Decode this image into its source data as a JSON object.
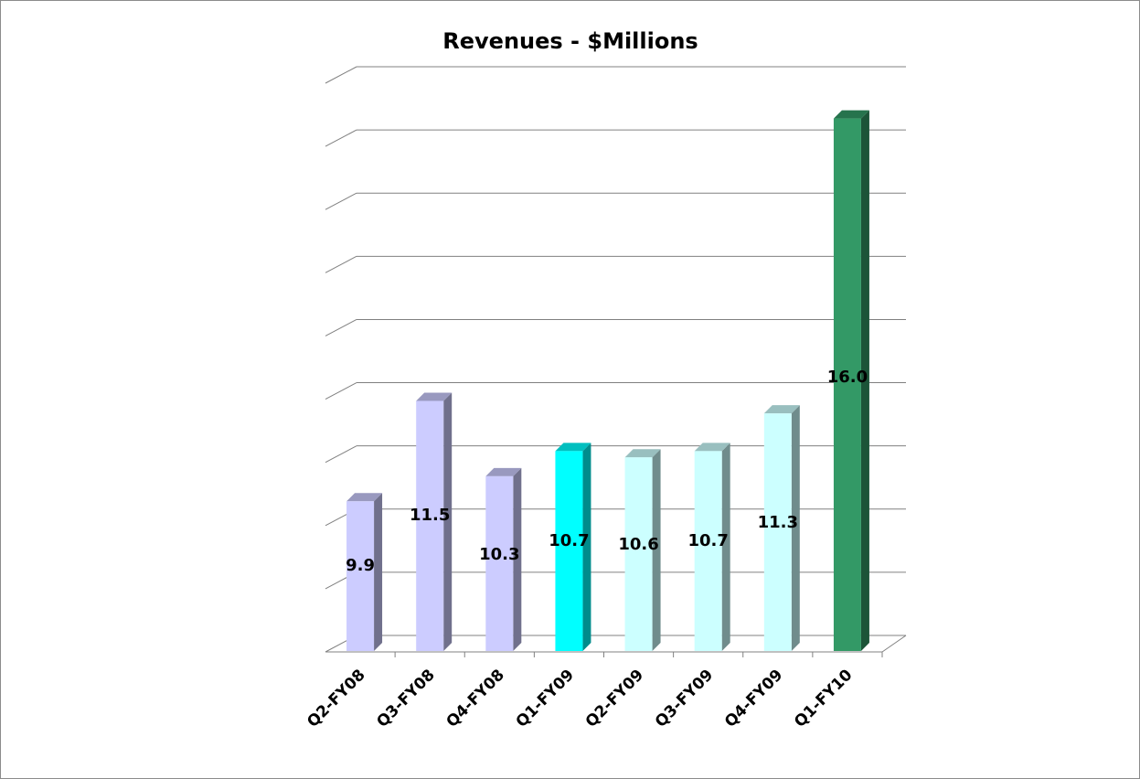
{
  "chart_data": {
    "type": "bar",
    "title": "Revenues - $Millions",
    "xlabel": "",
    "ylabel": "",
    "categories": [
      "Q2-FY08",
      "Q3-FY08",
      "Q4-FY08",
      "Q1-FY09",
      "Q2-FY09",
      "Q3-FY09",
      "Q4-FY09",
      "Q1-FY10"
    ],
    "values": [
      9.9,
      11.5,
      10.3,
      10.7,
      10.6,
      10.7,
      11.3,
      16.0
    ],
    "value_labels": [
      "9.9",
      "11.5",
      "10.3",
      "10.7",
      "10.6",
      "10.7",
      "11.3",
      "16.0"
    ],
    "colors": [
      "#ccccff",
      "#ccccff",
      "#ccccff",
      "#00ffff",
      "#ccffff",
      "#ccffff",
      "#ccffff",
      "#339966"
    ],
    "ylim": [
      7.5,
      16.3
    ],
    "grid": true,
    "legend": "none",
    "style": "3d-column"
  }
}
